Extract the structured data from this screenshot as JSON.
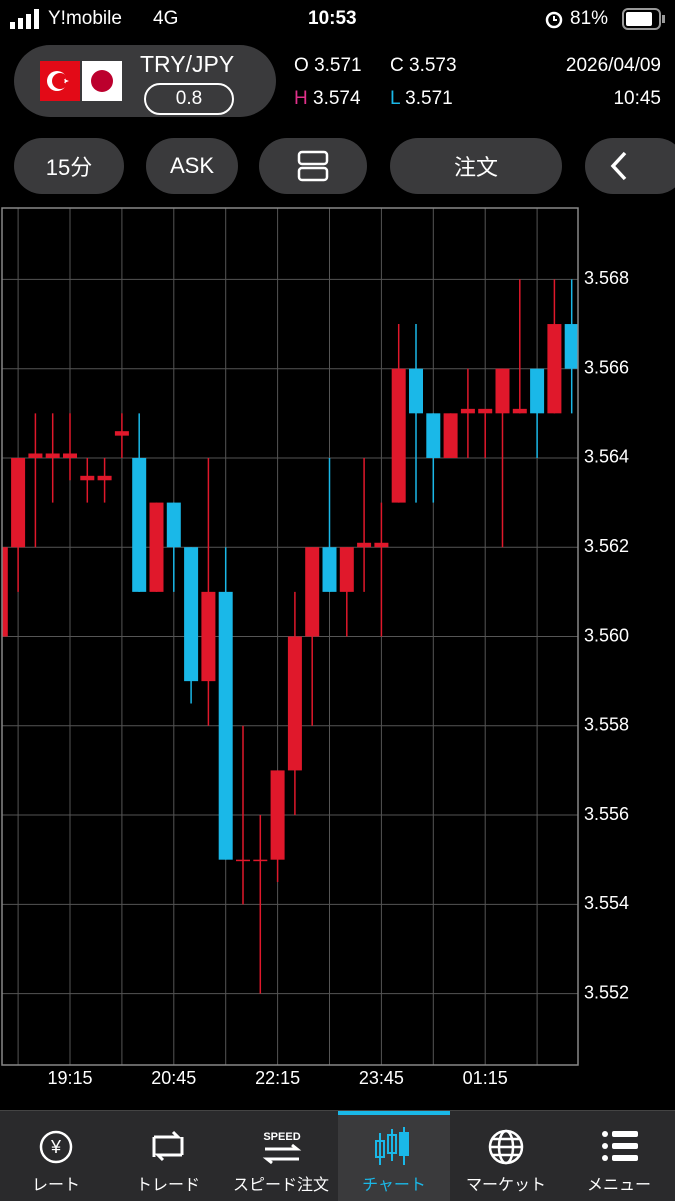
{
  "status_bar": {
    "carrier": "Y!mobile",
    "network": "4G",
    "time": "10:53",
    "battery": "81%"
  },
  "header": {
    "pair": "TRY/JPY",
    "spread": "0.8",
    "open": {
      "key": "O",
      "value": "3.571"
    },
    "close": {
      "key": "C",
      "value": "3.573"
    },
    "high": {
      "key": "H",
      "value": "3.574"
    },
    "low": {
      "key": "L",
      "value": "3.571"
    },
    "date": "2026/04/09",
    "time": "10:45"
  },
  "toolbar": {
    "interval": "15分",
    "side": "ASK",
    "order": "注文"
  },
  "chart_data": {
    "type": "candlestick",
    "categories": [
      null,
      null,
      null,
      null,
      "19:15",
      null,
      null,
      null,
      null,
      null,
      "20:45",
      null,
      null,
      null,
      null,
      null,
      "22:15",
      null,
      null,
      null,
      null,
      null,
      "23:45",
      null,
      null,
      null,
      null,
      null,
      "01:15",
      null,
      null,
      null,
      null,
      null
    ],
    "open": [
      3.56,
      3.562,
      3.564,
      3.564,
      3.564,
      3.5635,
      3.5635,
      3.5645,
      3.564,
      3.561,
      3.563,
      3.562,
      3.559,
      3.561,
      3.555,
      3.555,
      3.555,
      3.557,
      3.56,
      3.562,
      3.561,
      3.562,
      3.562,
      3.563,
      3.566,
      3.565,
      3.564,
      3.565,
      3.565,
      3.565,
      3.565,
      3.566,
      3.565,
      3.567
    ],
    "high": [
      3.562,
      3.564,
      3.565,
      3.565,
      3.565,
      3.564,
      3.564,
      3.565,
      3.565,
      3.563,
      3.563,
      3.562,
      3.564,
      3.562,
      3.558,
      3.556,
      3.557,
      3.561,
      3.562,
      3.564,
      3.562,
      3.564,
      3.563,
      3.567,
      3.567,
      3.565,
      3.565,
      3.566,
      3.565,
      3.566,
      3.568,
      3.566,
      3.568,
      3.568
    ],
    "low": [
      3.56,
      3.561,
      3.562,
      3.563,
      3.5635,
      3.563,
      3.563,
      3.564,
      3.561,
      3.561,
      3.561,
      3.5585,
      3.558,
      3.555,
      3.554,
      3.552,
      3.5545,
      3.556,
      3.558,
      3.561,
      3.56,
      3.561,
      3.56,
      3.563,
      3.563,
      3.563,
      3.564,
      3.564,
      3.564,
      3.562,
      3.565,
      3.564,
      3.565,
      3.565
    ],
    "close": [
      3.562,
      3.564,
      3.5641,
      3.5641,
      3.5641,
      3.5636,
      3.5636,
      3.5646,
      3.561,
      3.563,
      3.562,
      3.559,
      3.561,
      3.555,
      3.555,
      3.555,
      3.557,
      3.56,
      3.562,
      3.561,
      3.562,
      3.5621,
      3.5621,
      3.566,
      3.565,
      3.564,
      3.565,
      3.5651,
      3.5651,
      3.566,
      3.5651,
      3.565,
      3.567,
      3.566
    ],
    "up_color": "#e0182b",
    "down_color": "#1ab8e8",
    "ylim": [
      3.5504,
      3.5696
    ],
    "yticks": [
      3.552,
      3.554,
      3.556,
      3.558,
      {
        "value": 3.56,
        "label": "3.560"
      },
      3.562,
      3.564,
      3.566,
      3.568
    ],
    "grid": true
  },
  "tabs": [
    "レート",
    "トレード",
    "スピード注文",
    "チャート",
    "マーケット",
    "メニュー"
  ],
  "active_tab": 3
}
